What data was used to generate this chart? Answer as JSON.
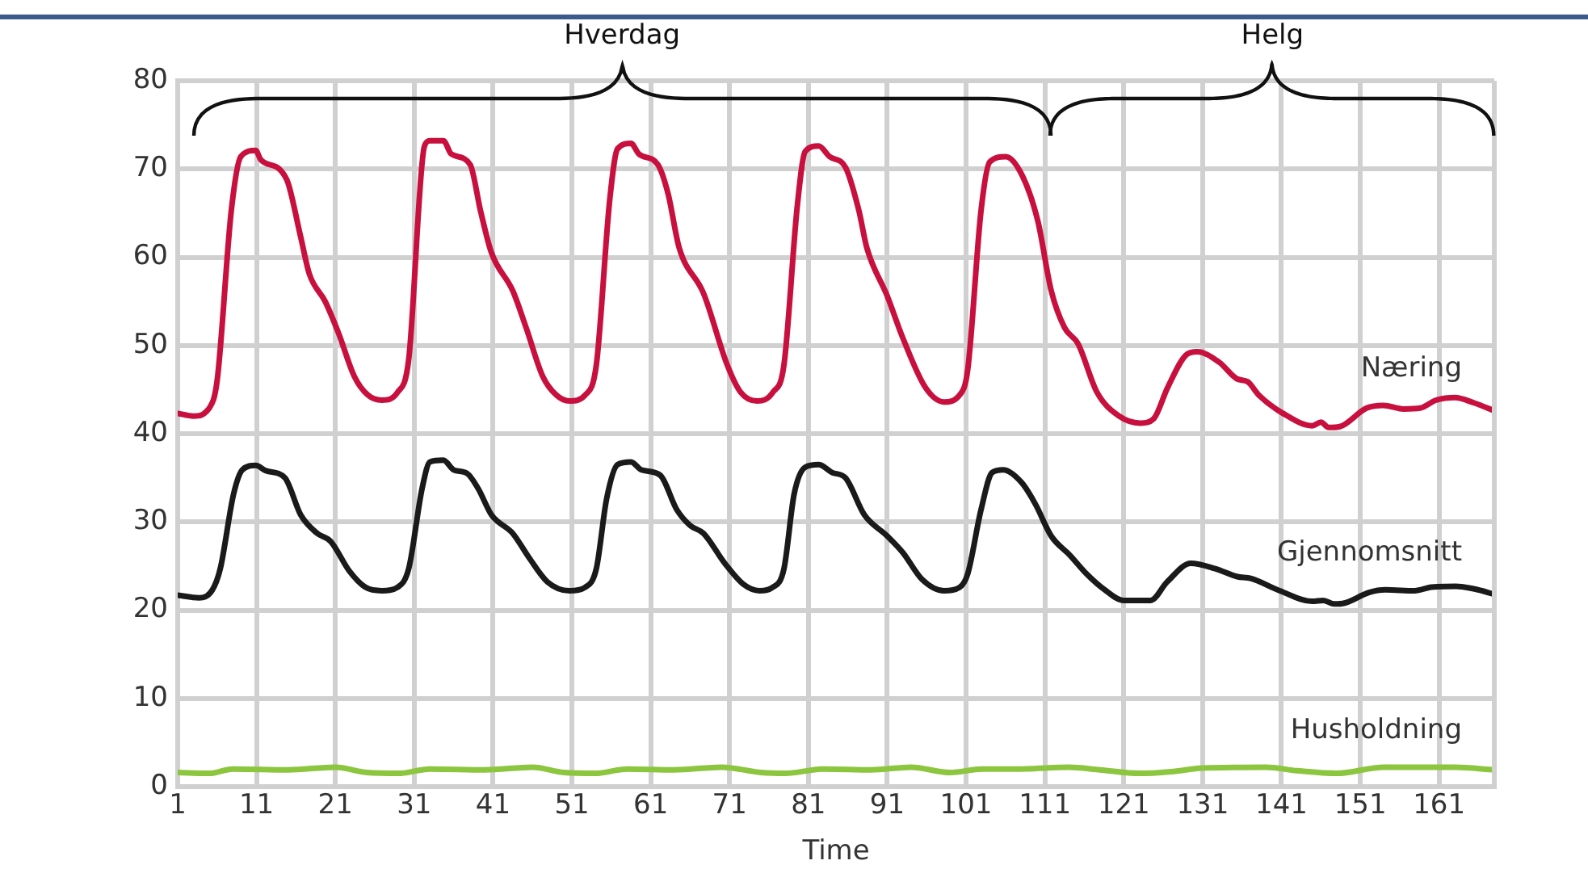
{
  "chart_data": {
    "type": "line",
    "xlabel": "Time",
    "xlim": [
      1,
      168
    ],
    "xticks": [
      1,
      11,
      21,
      31,
      41,
      51,
      61,
      71,
      81,
      91,
      101,
      111,
      121,
      131,
      141,
      151,
      161
    ],
    "ylim": [
      0,
      80
    ],
    "yticks": [
      0,
      10,
      20,
      30,
      40,
      50,
      60,
      70,
      80
    ],
    "grid": true,
    "legend": false,
    "marker": "none",
    "line_style": "solid",
    "annotations": [
      "Hverdag",
      "Helg"
    ],
    "series": [
      {
        "name": "Næring",
        "color": "#c8103e",
        "x": [
          1,
          3,
          5,
          6,
          7.8,
          9,
          10.9,
          11.5,
          14,
          15,
          16.6,
          17.7,
          19.7,
          21.4,
          23.4,
          25.1,
          26.9,
          28.9,
          30.3,
          32.3,
          33,
          34.7,
          35.7,
          38.1,
          39.4,
          40.8,
          43.5,
          45.2,
          47.3,
          49,
          50.7,
          52.7,
          54.1,
          55.8,
          56.8,
          58.5,
          59.5,
          61.9,
          63.2,
          64.6,
          67.7,
          70.7,
          72.4,
          74.5,
          76.5,
          77.9,
          79.6,
          80.6,
          82.3,
          83.7,
          85.7,
          87.4,
          88.4,
          91,
          93,
          95.8,
          98.2,
          100.2,
          101.2,
          102.9,
          104,
          106,
          108.1,
          110.1,
          111.8,
          113.5,
          115.2,
          117.6,
          120.4,
          123.1,
          124.8,
          126.6,
          129,
          130.3,
          133.1,
          135.4,
          136.7,
          138.1,
          141.2,
          144.9,
          146,
          147,
          148.4,
          151.8,
          153.9,
          156.5,
          158.6,
          160.6,
          163,
          165.4,
          168
        ],
        "values": [
          42.3,
          42,
          42.9,
          46,
          65.3,
          71.4,
          72.1,
          71.1,
          69.9,
          68.4,
          62.3,
          58.1,
          55,
          51.4,
          46.5,
          44.4,
          43.8,
          44.7,
          48.4,
          72.6,
          73.2,
          73.2,
          71.7,
          70.5,
          65.3,
          60.5,
          56.2,
          52,
          46.5,
          44.4,
          43.7,
          44.4,
          47.8,
          66.5,
          72.3,
          72.9,
          71.7,
          70.5,
          67.2,
          61.1,
          55.9,
          47.8,
          44.7,
          43.7,
          44.7,
          47.8,
          65.9,
          72,
          72.6,
          71.4,
          70.2,
          65.3,
          61.1,
          55.6,
          50.8,
          45.3,
          43.6,
          44.4,
          47.2,
          65.3,
          70.8,
          71.4,
          69.3,
          64.1,
          56.2,
          52,
          50.2,
          44.7,
          42,
          41.2,
          41.7,
          45.3,
          49,
          49.3,
          48.1,
          46.2,
          45.9,
          44.4,
          42.3,
          40.9,
          41.3,
          40.7,
          40.8,
          42.9,
          43.2,
          42.8,
          42.9,
          43.8,
          44.1,
          43.5,
          42.6
        ]
      },
      {
        "name": "Gjennomsnitt",
        "color": "#1a1a1a",
        "x": [
          1,
          3.7,
          5.4,
          6.4,
          8.1,
          9.2,
          10.9,
          12.2,
          14.6,
          16.6,
          18.7,
          20.4,
          22.8,
          24.8,
          26.9,
          28.9,
          30.3,
          32,
          33,
          34.7,
          36,
          37.7,
          39.1,
          40.8,
          43.5,
          45.6,
          47.9,
          50.7,
          52.7,
          54.1,
          55.4,
          56.8,
          58.5,
          59.8,
          62.2,
          64.3,
          66,
          67.7,
          70.4,
          72.8,
          74.8,
          76.5,
          77.9,
          79.2,
          80.6,
          82.3,
          84,
          85.7,
          88.1,
          91,
          93,
          95.4,
          98.2,
          100.2,
          101.2,
          102.9,
          104.3,
          105.7,
          108.1,
          109.8,
          111.8,
          114.2,
          116.3,
          118.6,
          121,
          124.4,
          126.5,
          129.5,
          132.6,
          135.4,
          137.1,
          140.8,
          144.9,
          146.3,
          147.7,
          149,
          152.1,
          154.2,
          157.9,
          160,
          163.1,
          165.5,
          168
        ],
        "values": [
          21.7,
          21.4,
          22.3,
          24.7,
          33.2,
          35.9,
          36.4,
          35.8,
          35,
          30.8,
          28.7,
          27.8,
          24.4,
          22.6,
          22.2,
          22.6,
          24.7,
          33.8,
          36.8,
          37,
          35.9,
          35.5,
          33.8,
          30.8,
          28.7,
          25.9,
          23.2,
          22.2,
          22.6,
          24.7,
          32.6,
          36.5,
          36.8,
          35.9,
          35.3,
          31.4,
          29.6,
          28.7,
          25.3,
          22.9,
          22.2,
          22.6,
          24.7,
          33.2,
          36.2,
          36.5,
          35.6,
          35,
          30.8,
          28.4,
          26.5,
          23.5,
          22.2,
          22.6,
          24.1,
          31.4,
          35.6,
          35.9,
          34.4,
          32,
          28.4,
          26.2,
          24.1,
          22.3,
          21.1,
          21.1,
          23.2,
          25.3,
          24.7,
          23.8,
          23.6,
          22.2,
          21,
          21.1,
          20.7,
          20.8,
          22,
          22.3,
          22.2,
          22.6,
          22.7,
          22.4,
          21.8
        ]
      },
      {
        "name": "Husholdning",
        "color": "#8cc63f",
        "x": [
          1,
          5,
          8,
          15,
          21,
          25,
          29,
          33,
          40,
          46,
          50,
          54,
          58,
          64,
          70,
          75,
          78,
          83,
          89,
          94,
          99,
          103,
          108,
          114,
          118,
          123,
          127,
          131,
          139,
          143,
          148,
          154,
          163,
          168
        ],
        "values": [
          1.6,
          1.5,
          2,
          1.9,
          2.2,
          1.6,
          1.5,
          2,
          1.9,
          2.2,
          1.6,
          1.5,
          2,
          1.9,
          2.2,
          1.6,
          1.5,
          2,
          1.9,
          2.2,
          1.6,
          2,
          2,
          2.2,
          1.9,
          1.5,
          1.7,
          2.1,
          2.2,
          1.8,
          1.5,
          2.2,
          2.2,
          1.9
        ]
      }
    ]
  }
}
